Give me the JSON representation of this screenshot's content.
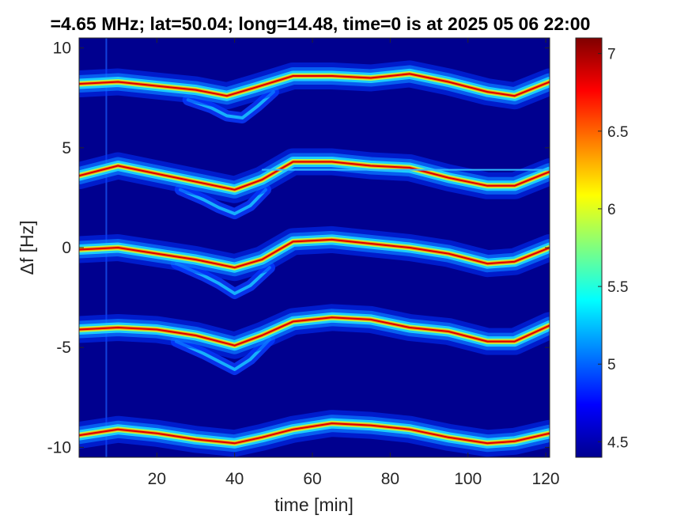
{
  "chart_data": {
    "type": "heatmap",
    "title": "=4.65 MHz;  lat=50.04; long=14.48, time=0 is at 2025 05 06 22:00",
    "xlabel": "time [min]",
    "ylabel": "Δf [Hz]",
    "xlim": [
      0,
      121
    ],
    "ylim": [
      -10.5,
      10.5
    ],
    "x_ticks": [
      20,
      40,
      60,
      80,
      100,
      120
    ],
    "y_ticks": [
      10,
      5,
      0,
      -5,
      -10
    ],
    "colorbar": {
      "range": [
        4.4,
        7.1
      ],
      "ticks": [
        7,
        6.5,
        6,
        5.5,
        5,
        4.5
      ],
      "colormap": "jet"
    },
    "background_color": "#00008f",
    "traces": [
      {
        "points": [
          [
            0,
            8.2
          ],
          [
            10,
            8.3
          ],
          [
            20,
            8.1
          ],
          [
            30,
            7.9
          ],
          [
            38,
            7.6
          ],
          [
            45,
            8.0
          ],
          [
            55,
            8.6
          ],
          [
            65,
            8.6
          ],
          [
            75,
            8.5
          ],
          [
            85,
            8.7
          ],
          [
            95,
            8.3
          ],
          [
            105,
            7.8
          ],
          [
            112,
            7.6
          ],
          [
            121,
            8.3
          ]
        ]
      },
      {
        "points": [
          [
            0,
            3.6
          ],
          [
            10,
            4.1
          ],
          [
            20,
            3.7
          ],
          [
            30,
            3.3
          ],
          [
            40,
            2.9
          ],
          [
            47,
            3.4
          ],
          [
            55,
            4.3
          ],
          [
            65,
            4.3
          ],
          [
            75,
            4.1
          ],
          [
            85,
            4.0
          ],
          [
            95,
            3.5
          ],
          [
            105,
            3.1
          ],
          [
            112,
            3.1
          ],
          [
            121,
            3.8
          ]
        ]
      },
      {
        "points": [
          [
            0,
            -0.1
          ],
          [
            10,
            0.0
          ],
          [
            20,
            -0.3
          ],
          [
            30,
            -0.6
          ],
          [
            40,
            -1.0
          ],
          [
            47,
            -0.6
          ],
          [
            55,
            0.3
          ],
          [
            65,
            0.4
          ],
          [
            75,
            0.2
          ],
          [
            85,
            0.0
          ],
          [
            95,
            -0.3
          ],
          [
            105,
            -0.8
          ],
          [
            112,
            -0.7
          ],
          [
            121,
            0.0
          ]
        ]
      },
      {
        "points": [
          [
            0,
            -4.1
          ],
          [
            10,
            -4.0
          ],
          [
            20,
            -4.1
          ],
          [
            30,
            -4.4
          ],
          [
            40,
            -4.9
          ],
          [
            47,
            -4.4
          ],
          [
            55,
            -3.7
          ],
          [
            65,
            -3.5
          ],
          [
            75,
            -3.6
          ],
          [
            85,
            -4.0
          ],
          [
            95,
            -4.2
          ],
          [
            105,
            -4.7
          ],
          [
            112,
            -4.7
          ],
          [
            121,
            -3.9
          ]
        ]
      },
      {
        "points": [
          [
            0,
            -9.4
          ],
          [
            10,
            -9.1
          ],
          [
            20,
            -9.3
          ],
          [
            30,
            -9.6
          ],
          [
            40,
            -9.8
          ],
          [
            47,
            -9.5
          ],
          [
            55,
            -9.1
          ],
          [
            65,
            -8.8
          ],
          [
            75,
            -8.9
          ],
          [
            85,
            -9.1
          ],
          [
            95,
            -9.5
          ],
          [
            105,
            -9.8
          ],
          [
            112,
            -9.7
          ],
          [
            121,
            -9.3
          ]
        ]
      }
    ],
    "secondary_traces": [
      {
        "points": [
          [
            28,
            7.4
          ],
          [
            34,
            7.0
          ],
          [
            38,
            6.6
          ],
          [
            42,
            6.5
          ],
          [
            46,
            7.1
          ],
          [
            50,
            7.8
          ]
        ]
      },
      {
        "points": [
          [
            26,
            2.9
          ],
          [
            32,
            2.4
          ],
          [
            36,
            2.0
          ],
          [
            40,
            1.7
          ],
          [
            44,
            2.1
          ],
          [
            48,
            2.9
          ]
        ]
      },
      {
        "points": [
          [
            25,
            -0.8
          ],
          [
            32,
            -1.4
          ],
          [
            36,
            -1.8
          ],
          [
            40,
            -2.3
          ],
          [
            44,
            -1.9
          ],
          [
            49,
            -1.0
          ]
        ]
      },
      {
        "points": [
          [
            25,
            -4.7
          ],
          [
            32,
            -5.3
          ],
          [
            36,
            -5.7
          ],
          [
            40,
            -6.1
          ],
          [
            44,
            -5.6
          ],
          [
            49,
            -4.6
          ]
        ]
      }
    ],
    "horizontal_line": {
      "y": 3.9,
      "x_start": 47,
      "x_end": 121
    },
    "vertical_line": {
      "x": 7
    }
  }
}
